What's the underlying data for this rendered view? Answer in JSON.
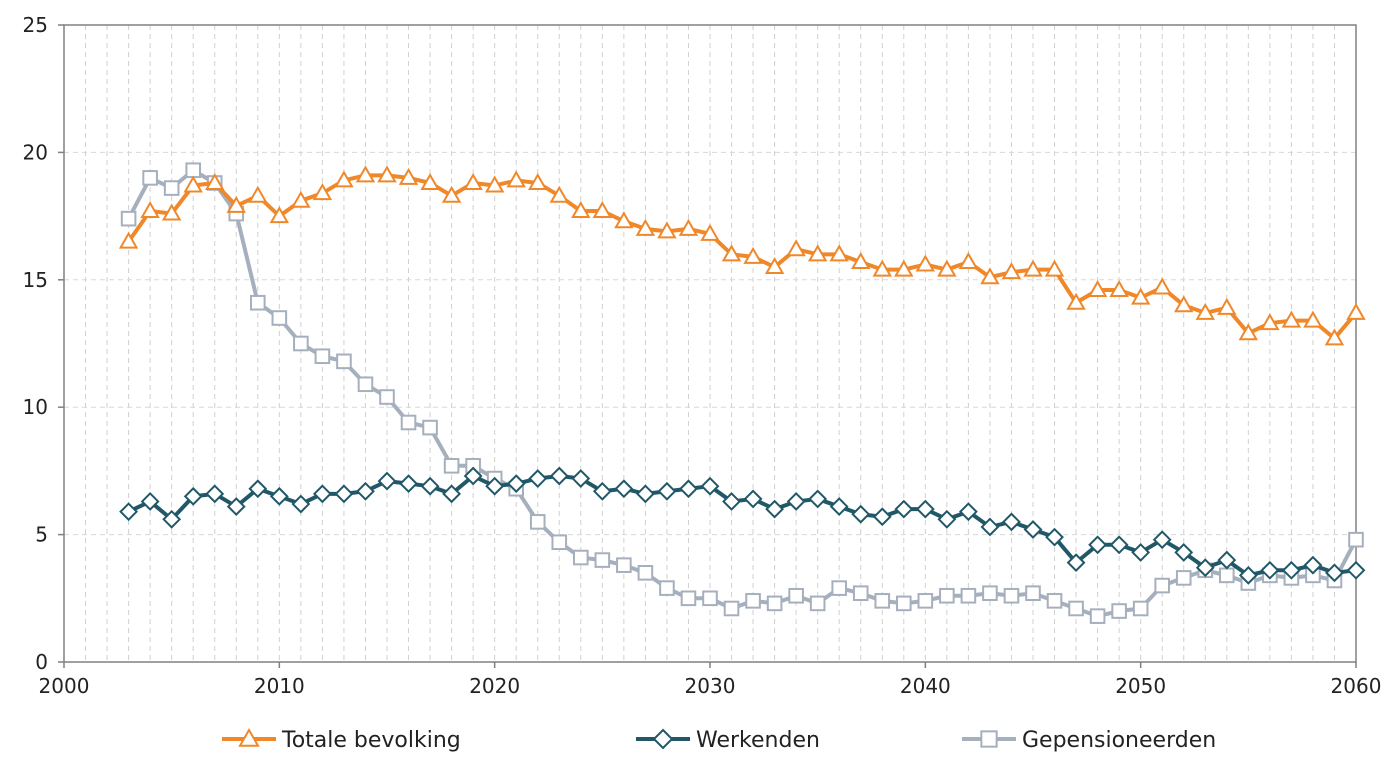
{
  "chart_data": {
    "type": "line",
    "title": "",
    "xlabel": "",
    "ylabel": "",
    "xlim": [
      2000,
      2060
    ],
    "ylim": [
      0,
      25
    ],
    "x_ticks": [
      "2000",
      "2010",
      "2020",
      "2030",
      "2040",
      "2050",
      "2060"
    ],
    "y_ticks": [
      "0",
      "5",
      "10",
      "15",
      "20",
      "25"
    ],
    "grid": "vertical dashed at each year",
    "legend_position": "bottom",
    "x": [
      2003,
      2004,
      2005,
      2006,
      2007,
      2008,
      2009,
      2010,
      2011,
      2012,
      2013,
      2014,
      2015,
      2016,
      2017,
      2018,
      2019,
      2020,
      2021,
      2022,
      2023,
      2024,
      2025,
      2026,
      2027,
      2028,
      2029,
      2030,
      2031,
      2032,
      2033,
      2034,
      2035,
      2036,
      2037,
      2038,
      2039,
      2040,
      2041,
      2042,
      2043,
      2044,
      2045,
      2046,
      2047,
      2048,
      2049,
      2050,
      2051,
      2052,
      2053,
      2054,
      2055,
      2056,
      2057,
      2058,
      2059,
      2060
    ],
    "series": [
      {
        "name": "Totale bevolking",
        "color": "#F0882A",
        "marker": "triangle",
        "values": [
          16.5,
          17.7,
          17.6,
          18.7,
          18.8,
          17.9,
          18.3,
          17.5,
          18.1,
          18.4,
          18.9,
          19.1,
          19.1,
          19.0,
          18.8,
          18.3,
          18.8,
          18.7,
          18.9,
          18.8,
          18.3,
          17.7,
          17.7,
          17.3,
          17.0,
          16.9,
          17.0,
          16.8,
          16.0,
          15.9,
          15.5,
          16.2,
          16.0,
          16.0,
          15.7,
          15.4,
          15.4,
          15.6,
          15.4,
          15.7,
          15.1,
          15.3,
          15.4,
          15.4,
          14.1,
          14.6,
          14.6,
          14.3,
          14.7,
          14.0,
          13.7,
          13.9,
          12.9,
          13.3,
          13.4,
          13.4,
          12.7,
          13.7
        ]
      },
      {
        "name": "Werkenden",
        "color": "#215868",
        "marker": "diamond",
        "values": [
          5.9,
          6.3,
          5.6,
          6.5,
          6.6,
          6.1,
          6.8,
          6.5,
          6.2,
          6.6,
          6.6,
          6.7,
          7.1,
          7.0,
          6.9,
          6.6,
          7.3,
          6.9,
          7.0,
          7.2,
          7.3,
          7.2,
          6.7,
          6.8,
          6.6,
          6.7,
          6.8,
          6.9,
          6.3,
          6.4,
          6.0,
          6.3,
          6.4,
          6.1,
          5.8,
          5.7,
          6.0,
          6.0,
          5.6,
          5.9,
          5.3,
          5.5,
          5.2,
          4.9,
          3.9,
          4.6,
          4.6,
          4.3,
          4.8,
          4.3,
          3.7,
          4.0,
          3.4,
          3.6,
          3.6,
          3.8,
          3.5,
          3.6
        ]
      },
      {
        "name": "Gepensioneerden",
        "color": "#A6AFBD",
        "marker": "square",
        "values": [
          17.4,
          19.0,
          18.6,
          19.3,
          18.8,
          17.6,
          14.1,
          13.5,
          12.5,
          12.0,
          11.8,
          10.9,
          10.4,
          9.4,
          9.2,
          7.7,
          7.7,
          7.2,
          6.8,
          5.5,
          4.7,
          4.1,
          4.0,
          3.8,
          3.5,
          2.9,
          2.5,
          2.5,
          2.1,
          2.4,
          2.3,
          2.6,
          2.3,
          2.9,
          2.7,
          2.4,
          2.3,
          2.4,
          2.6,
          2.6,
          2.7,
          2.6,
          2.7,
          2.4,
          2.1,
          1.8,
          2.0,
          2.1,
          3.0,
          3.3,
          3.6,
          3.4,
          3.1,
          3.4,
          3.3,
          3.4,
          3.2,
          4.8
        ]
      }
    ]
  }
}
